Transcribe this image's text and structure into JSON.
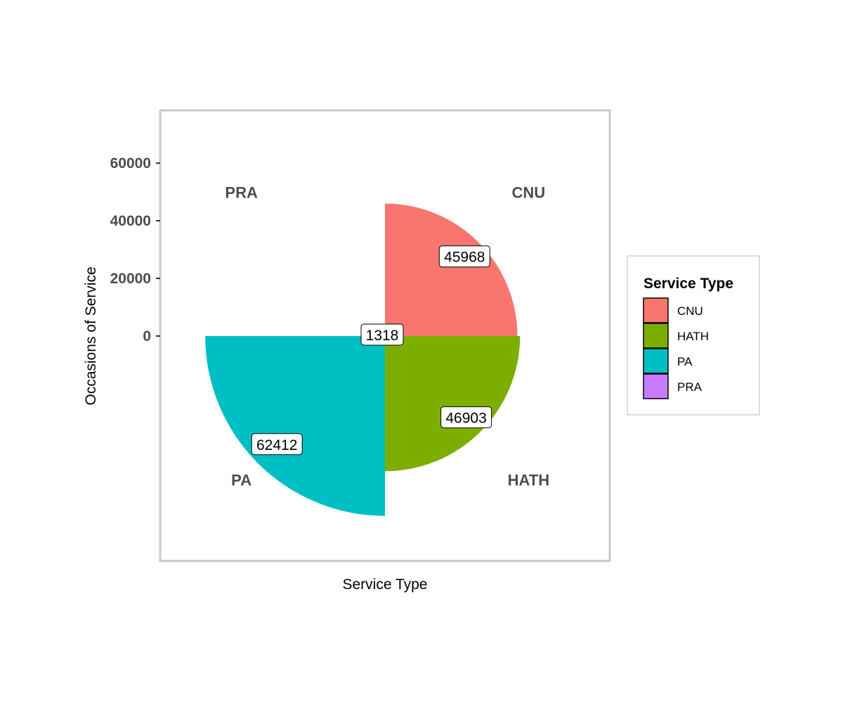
{
  "chart_data": {
    "type": "pie",
    "coord": "polar rose (ggplot2 coord_polar, radius = value)",
    "xlabel": "Service Type",
    "ylabel": "Occasions of Service",
    "yticks": [
      0,
      20000,
      40000,
      60000
    ],
    "ytick_labels": [
      "0",
      "20000",
      "40000",
      "60000"
    ],
    "ylim": [
      0,
      75000
    ],
    "grid": false,
    "categories": [
      "CNU",
      "HATH",
      "PA",
      "PRA"
    ],
    "values": [
      45968,
      46903,
      62412,
      1318
    ],
    "value_labels": [
      "45968",
      "46903",
      "62412",
      "1318"
    ],
    "colors": [
      "#F8766D",
      "#7CAE00",
      "#00BFC4",
      "#C77CFF"
    ],
    "legend": {
      "title": "Service Type",
      "position": "right",
      "items": [
        "CNU",
        "HATH",
        "PA",
        "PRA"
      ]
    }
  }
}
